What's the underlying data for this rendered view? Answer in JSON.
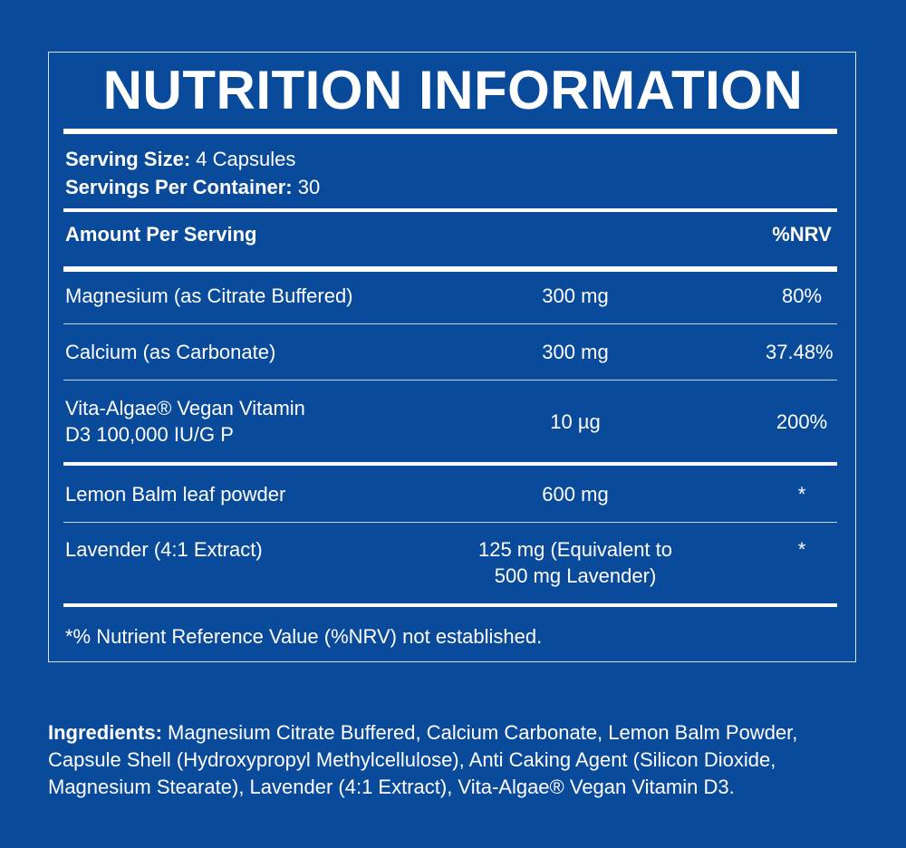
{
  "title": "NUTRITION INFORMATION",
  "serving": {
    "size_label": "Serving Size:",
    "size_value": " 4 Capsules",
    "per_container_label": "Servings Per Container:",
    "per_container_value": " 30"
  },
  "header": {
    "amount": "Amount Per Serving",
    "nrv": "%NRV"
  },
  "rows": [
    {
      "name": "Magnesium (as Citrate Buffered)",
      "amount": "300 mg",
      "nrv": "80%"
    },
    {
      "name": "Calcium (as Carbonate)",
      "amount": "300 mg",
      "nrv": "37.48%"
    },
    {
      "name_line1": "Vita-Algae® Vegan Vitamin",
      "name_line2": "D3 100,000 IU/G P",
      "amount": "10 µg",
      "nrv": "200%"
    },
    {
      "name": "Lemon Balm leaf powder",
      "amount": "600 mg",
      "nrv": "*"
    },
    {
      "name": "Lavender (4:1 Extract)",
      "amount_line1": "125 mg (Equivalent to",
      "amount_line2": "500 mg Lavender)",
      "nrv": "*"
    }
  ],
  "footnote": "*% Nutrient Reference Value (%NRV) not established.",
  "ingredients": {
    "label": "Ingredients:",
    "text": " Magnesium Citrate Buffered, Calcium Carbonate, Lemon Balm Powder, Capsule Shell (Hydroxypropyl Methylcellulose), Anti Caking Agent (Silicon Dioxide, Magnesium Stearate), Lavender (4:1 Extract), Vita-Algae® Vegan Vitamin D3."
  },
  "colors": {
    "background": "#0a4a9b",
    "text": "#ffffff"
  }
}
